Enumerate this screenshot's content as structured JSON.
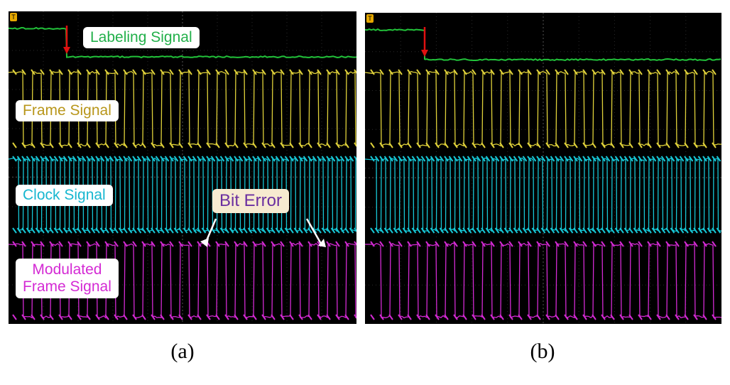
{
  "panels": [
    {
      "id": "a",
      "caption": "(a)",
      "labels": {
        "labeling": "Labeling Signal",
        "frame": "Frame Signal",
        "clock": "Clock Signal",
        "modulated_line1": "Modulated",
        "modulated_line2": "Frame Signal",
        "bit_error": "Bit Error"
      },
      "trigger_marker": "T"
    },
    {
      "id": "b",
      "caption": "(b)",
      "trigger_marker": "T"
    }
  ],
  "colors": {
    "labeling": "#22c23a",
    "frame": "#e0d23a",
    "clock": "#17c7d6",
    "modulated": "#d42ad4",
    "arrow_red": "#e01010",
    "bit_error_bg": "#f7ead0",
    "bit_error_text": "#6b2fa0",
    "frame_label_text": "#b8961a",
    "modulated_label_text": "#d42ad4"
  }
}
